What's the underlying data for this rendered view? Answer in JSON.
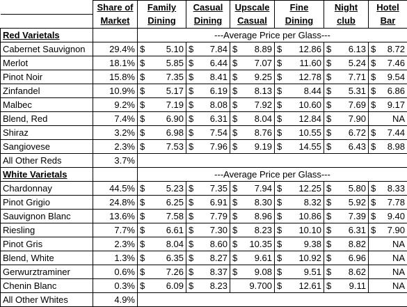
{
  "columns": {
    "share": [
      "Share of",
      "Market"
    ],
    "family": [
      "Family",
      "Dining"
    ],
    "casual": [
      "Casual",
      "Dining"
    ],
    "upscale": [
      "Upscale",
      "Casual"
    ],
    "fine": [
      "Fine",
      "Dining"
    ],
    "night": [
      "Night",
      "club"
    ],
    "hotel": [
      "Hotel",
      "Bar"
    ]
  },
  "currency_symbol": "$",
  "red": {
    "title": "Red Varietals",
    "avg_label": "---Average Price per Glass---",
    "rows": [
      {
        "name": "Cabernet Sauvignon",
        "share": "29.4%",
        "family": "5.10",
        "casual": "7.84",
        "upscale": "8.89",
        "fine": "12.86",
        "night": "6.13",
        "hotel": "8.72"
      },
      {
        "name": "Merlot",
        "share": "18.1%",
        "family": "5.85",
        "casual": "6.44",
        "upscale": "7.07",
        "fine": "11.60",
        "night": "5.24",
        "hotel": "7.46"
      },
      {
        "name": "Pinot Noir",
        "share": "15.8%",
        "family": "7.35",
        "casual": "8.41",
        "upscale": "9.25",
        "fine": "12.78",
        "night": "7.71",
        "hotel": "9.54"
      },
      {
        "name": "Zinfandel",
        "share": "10.9%",
        "family": "5.17",
        "casual": "6.19",
        "upscale": "8.13",
        "fine": "8.44",
        "night": "5.31",
        "hotel": "6.86"
      },
      {
        "name": "Malbec",
        "share": "9.2%",
        "family": "7.19",
        "casual": "8.08",
        "upscale": "7.92",
        "fine": "10.60",
        "night": "7.69",
        "hotel": "9.17"
      },
      {
        "name": "Blend, Red",
        "share": "7.4%",
        "family": "6.90",
        "casual": "6.31",
        "upscale": "8.04",
        "fine": "12.84",
        "night": "7.90",
        "hotel": "NA"
      },
      {
        "name": "Shiraz",
        "share": "3.2%",
        "family": "6.98",
        "casual": "7.54",
        "upscale": "8.76",
        "fine": "10.55",
        "night": "6.72",
        "hotel": "7.44"
      },
      {
        "name": "Sangiovese",
        "share": "2.3%",
        "family": "7.53",
        "casual": "7.96",
        "upscale": "9.19",
        "fine": "14.55",
        "night": "6.43",
        "hotel": "8.98"
      }
    ],
    "other": {
      "name": "All Other Reds",
      "share": "3.7%"
    }
  },
  "white": {
    "title": "White Varietals",
    "avg_label": "---Average Price per Glass---",
    "rows": [
      {
        "name": "Chardonnay",
        "share": "44.5%",
        "family": "5.23",
        "casual": "7.35",
        "upscale": "7.94",
        "fine": "12.25",
        "night": "5.80",
        "hotel": "8.33"
      },
      {
        "name": "Pinot Grigio",
        "share": "24.8%",
        "family": "6.25",
        "casual": "6.91",
        "upscale": "8.30",
        "fine": "8.32",
        "night": "5.92",
        "hotel": "7.78"
      },
      {
        "name": "Sauvignon Blanc",
        "share": "13.6%",
        "family": "7.58",
        "casual": "7.79",
        "upscale": "8.96",
        "fine": "10.86",
        "night": "7.39",
        "hotel": "9.40"
      },
      {
        "name": "Riesling",
        "share": "7.7%",
        "family": "6.61",
        "casual": "7.30",
        "upscale": "8.23",
        "fine": "10.10",
        "night": "6.31",
        "hotel": "7.90"
      },
      {
        "name": "Pinot Gris",
        "share": "2.3%",
        "family": "8.04",
        "casual": "8.60",
        "upscale": "10.35",
        "fine": "9.38",
        "night": "8.82",
        "hotel": "NA"
      },
      {
        "name": "Blend, White",
        "share": "1.3%",
        "family": "6.35",
        "casual": "8.27",
        "upscale": "9.61",
        "fine": "10.92",
        "night": "6.96",
        "hotel": "NA"
      },
      {
        "name": "Gerwurztraminer",
        "share": "0.6%",
        "family": "7.26",
        "casual": "8.37",
        "upscale": "9.08",
        "fine": "9.51",
        "night": "8.62",
        "hotel": "NA"
      },
      {
        "name": "Chenin Blanc",
        "share": "0.3%",
        "family": "6.09",
        "casual": "8.23",
        "upscale": "9.700",
        "fine": "12.61",
        "night": "9.11",
        "hotel": "NA",
        "upscale_no_symbol": true
      }
    ],
    "other": {
      "name": "All Other Whites",
      "share": "4.9%"
    }
  }
}
